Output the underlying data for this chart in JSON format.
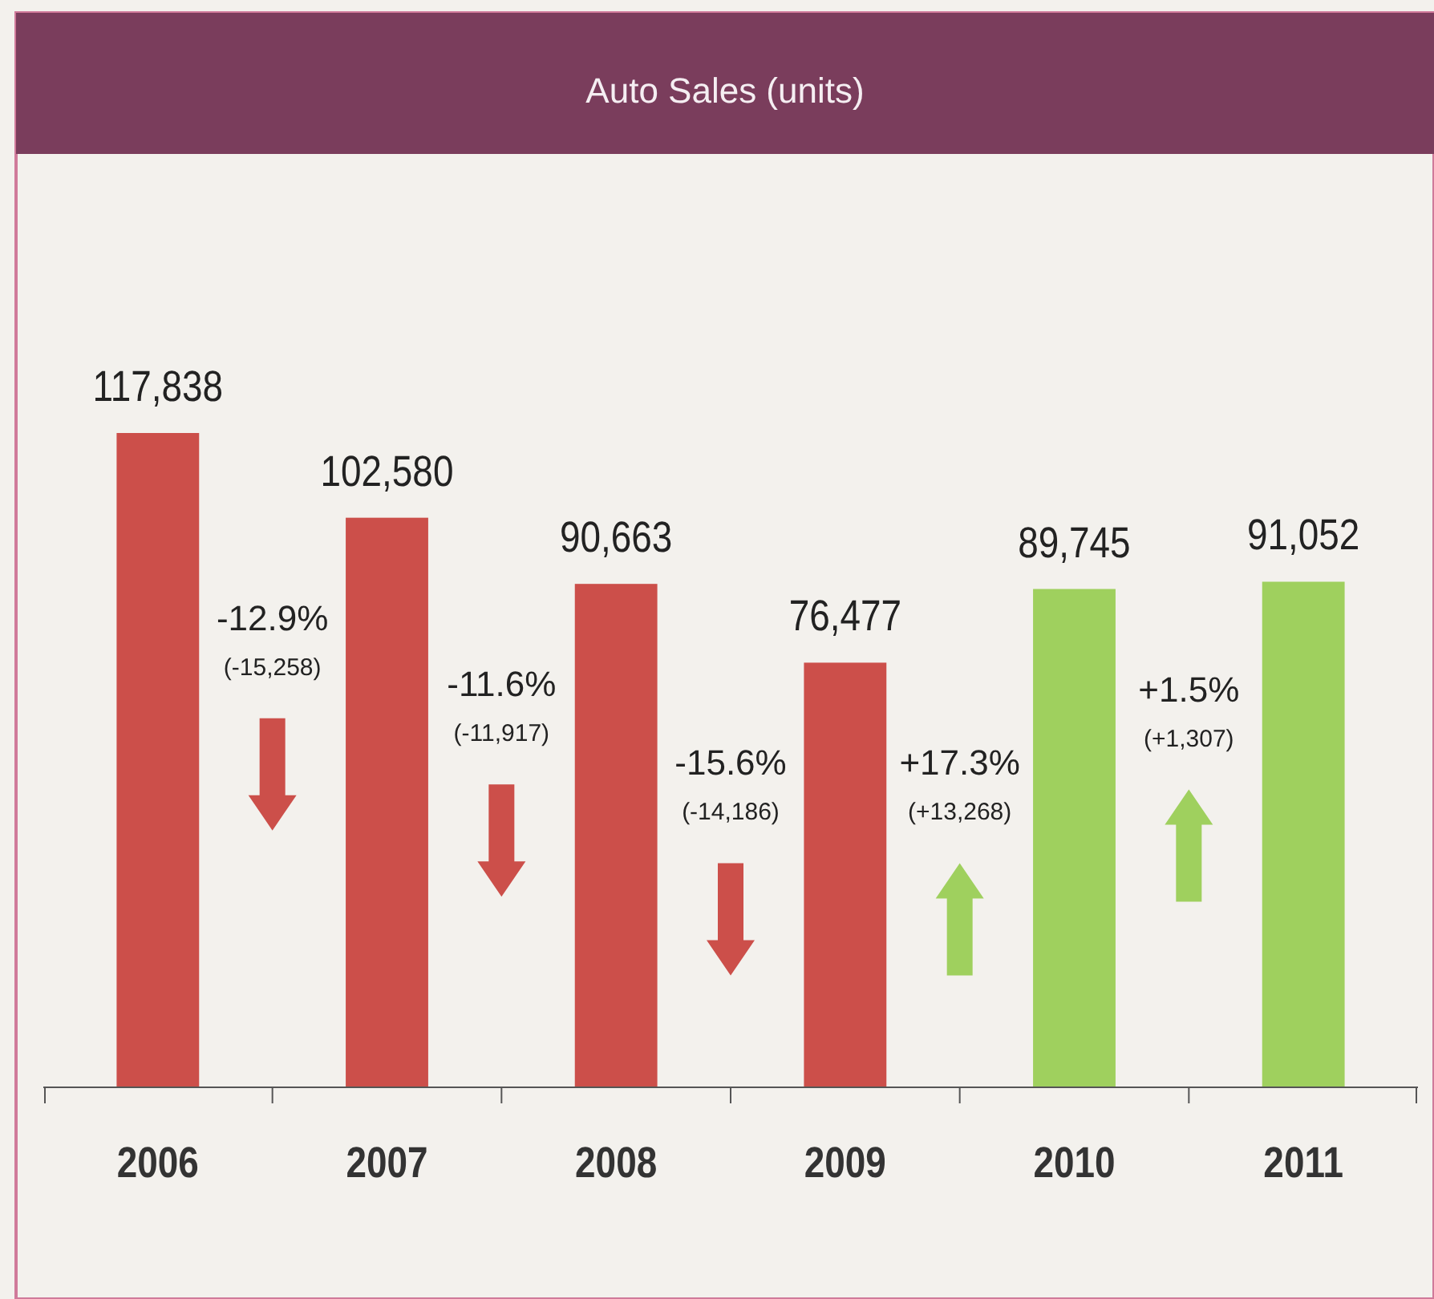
{
  "chart_data": {
    "type": "bar",
    "title": "Auto Sales (units)",
    "categories": [
      "2006",
      "2007",
      "2008",
      "2009",
      "2010",
      "2011"
    ],
    "values": [
      117838,
      102580,
      90663,
      76477,
      89745,
      91052
    ],
    "colors": [
      "#cc4f4a",
      "#cc4f4a",
      "#cc4f4a",
      "#cc4f4a",
      "#9fd05e",
      "#9fd05e"
    ],
    "value_labels": [
      "117,838",
      "102,580",
      "90,663",
      "76,477",
      "89,745",
      "91,052"
    ],
    "grid": false,
    "annotations": [
      "-12.9%",
      "(-15,258)",
      "-11.6%",
      "(-11,917)",
      "-15.6%",
      "(-14,186)",
      "+17.3%",
      "(+13,268)",
      "+1.5%",
      "(+1,307)"
    ]
  }
}
